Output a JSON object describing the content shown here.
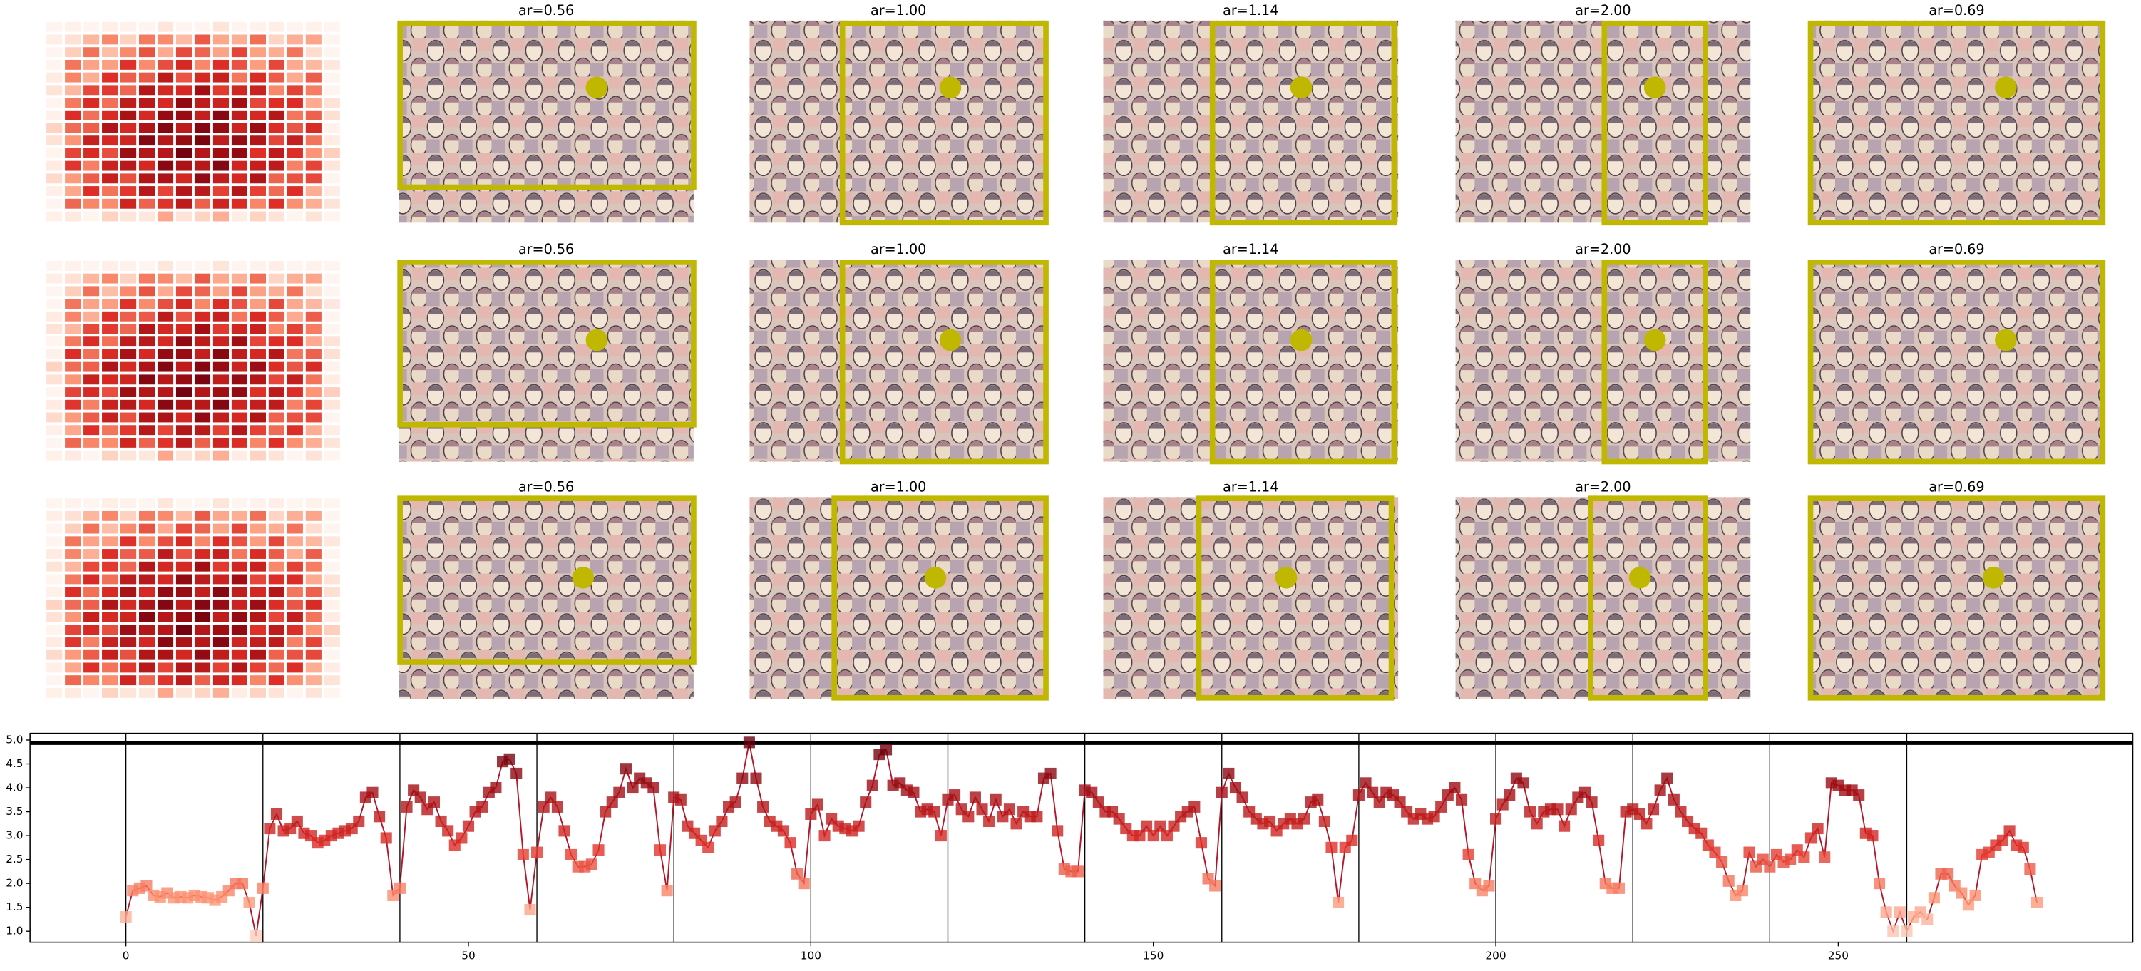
{
  "panel_titles": [
    [
      "ar=0.56",
      "ar=1.00",
      "ar=1.14",
      "ar=2.00",
      "ar=0.69"
    ],
    [
      "ar=0.56",
      "ar=1.00",
      "ar=1.14",
      "ar=2.00",
      "ar=0.69"
    ],
    [
      "ar=0.56",
      "ar=1.00",
      "ar=1.14",
      "ar=2.00",
      "ar=0.69"
    ]
  ],
  "chart_data": {
    "type": "line",
    "x": [
      0,
      1,
      2,
      3,
      4,
      5,
      6,
      7,
      8,
      9,
      10,
      11,
      12,
      13,
      14,
      15,
      16,
      17,
      18,
      19,
      20,
      21,
      22,
      23,
      24,
      25,
      26,
      27,
      28,
      29,
      30,
      31,
      32,
      33,
      34,
      35,
      36,
      37,
      38,
      39,
      40,
      41,
      42,
      43,
      44,
      45,
      46,
      47,
      48,
      49,
      50,
      51,
      52,
      53,
      54,
      55,
      56,
      57,
      58,
      59,
      60,
      61,
      62,
      63,
      64,
      65,
      66,
      67,
      68,
      69,
      70,
      71,
      72,
      73,
      74,
      75,
      76,
      77,
      78,
      79,
      80,
      81,
      82,
      83,
      84,
      85,
      86,
      87,
      88,
      89,
      90,
      91,
      92,
      93,
      94,
      95,
      96,
      97,
      98,
      99,
      100,
      101,
      102,
      103,
      104,
      105,
      106,
      107,
      108,
      109,
      110,
      111,
      112,
      113,
      114,
      115,
      116,
      117,
      118,
      119,
      120,
      121,
      122,
      123,
      124,
      125,
      126,
      127,
      128,
      129,
      130,
      131,
      132,
      133,
      134,
      135,
      136,
      137,
      138,
      139,
      140,
      141,
      142,
      143,
      144,
      145,
      146,
      147,
      148,
      149,
      150,
      151,
      152,
      153,
      154,
      155,
      156,
      157,
      158,
      159,
      160,
      161,
      162,
      163,
      164,
      165,
      166,
      167,
      168,
      169,
      170,
      171,
      172,
      173,
      174,
      175,
      176,
      177,
      178,
      179,
      180,
      181,
      182,
      183,
      184,
      185,
      186,
      187,
      188,
      189,
      190,
      191,
      192,
      193,
      194,
      195,
      196,
      197,
      198,
      199,
      200,
      201,
      202,
      203,
      204,
      205,
      206,
      207,
      208,
      209,
      210,
      211,
      212,
      213,
      214,
      215,
      216,
      217,
      218,
      219,
      220,
      221,
      222,
      223,
      224,
      225,
      226,
      227,
      228,
      229,
      230,
      231,
      232,
      233,
      234,
      235,
      236,
      237,
      238,
      239,
      240,
      241,
      242,
      243,
      244,
      245,
      246,
      247,
      248,
      249,
      250,
      251,
      252,
      253,
      254,
      255,
      256,
      257,
      258,
      259,
      260,
      261,
      262,
      263,
      264,
      265,
      266,
      267,
      268,
      269,
      270,
      271,
      272,
      273,
      274,
      275,
      276,
      277,
      278,
      279
    ],
    "series": [
      {
        "color": "#b2182b",
        "values": [
          1.3,
          1.85,
          1.9,
          1.95,
          1.75,
          1.72,
          1.8,
          1.7,
          1.72,
          1.7,
          1.75,
          1.72,
          1.7,
          1.65,
          1.72,
          1.85,
          2.0,
          2.0,
          1.6,
          0.9,
          1.9,
          3.15,
          3.45,
          3.1,
          3.15,
          3.3,
          3.05,
          3.0,
          2.85,
          2.9,
          3.0,
          3.05,
          3.1,
          3.15,
          3.3,
          3.8,
          3.9,
          3.4,
          2.95,
          1.75,
          1.9,
          3.6,
          3.95,
          3.8,
          3.55,
          3.7,
          3.3,
          3.1,
          2.8,
          2.95,
          3.2,
          3.5,
          3.6,
          3.9,
          4.0,
          4.55,
          4.6,
          4.3,
          2.6,
          1.45,
          2.65,
          3.6,
          3.8,
          3.6,
          3.1,
          2.6,
          2.35,
          2.35,
          2.4,
          2.7,
          3.5,
          3.7,
          3.9,
          4.4,
          4.0,
          4.2,
          4.1,
          4.0,
          2.7,
          1.85,
          3.8,
          3.75,
          3.2,
          3.05,
          2.9,
          2.75,
          3.1,
          3.3,
          3.6,
          3.7,
          4.2,
          4.95,
          4.2,
          3.6,
          3.3,
          3.2,
          3.1,
          2.85,
          2.2,
          2.0,
          3.45,
          3.65,
          3.0,
          3.35,
          3.2,
          3.15,
          3.1,
          3.2,
          3.7,
          4.05,
          4.7,
          4.8,
          4.05,
          4.1,
          3.95,
          3.9,
          3.5,
          3.55,
          3.5,
          3.0,
          3.75,
          3.85,
          3.55,
          3.4,
          3.8,
          3.55,
          3.3,
          3.75,
          3.4,
          3.55,
          3.25,
          3.5,
          3.4,
          3.4,
          4.2,
          4.3,
          3.1,
          2.3,
          2.25,
          2.25,
          3.95,
          3.9,
          3.7,
          3.5,
          3.5,
          3.35,
          3.15,
          3.0,
          3.0,
          3.2,
          3.0,
          3.2,
          3.0,
          3.2,
          3.4,
          3.5,
          3.6,
          2.85,
          2.1,
          1.95,
          3.9,
          4.3,
          4.0,
          3.8,
          3.5,
          3.35,
          3.25,
          3.3,
          3.1,
          3.25,
          3.35,
          3.25,
          3.35,
          3.7,
          3.75,
          3.3,
          2.75,
          1.6,
          2.75,
          2.9,
          3.85,
          4.1,
          3.9,
          3.7,
          3.9,
          3.85,
          3.7,
          3.5,
          3.35,
          3.45,
          3.35,
          3.4,
          3.6,
          3.85,
          4.0,
          3.75,
          2.6,
          2.0,
          1.85,
          1.95,
          3.35,
          3.65,
          3.85,
          4.2,
          4.1,
          3.5,
          3.25,
          3.5,
          3.55,
          3.55,
          3.2,
          3.55,
          3.8,
          3.9,
          3.7,
          2.9,
          2.0,
          1.9,
          1.9,
          3.5,
          3.55,
          3.45,
          3.25,
          3.55,
          3.95,
          4.2,
          3.75,
          3.5,
          3.3,
          3.15,
          3.05,
          2.8,
          2.65,
          2.45,
          2.05,
          1.75,
          1.85,
          2.65,
          2.35,
          2.5,
          2.35,
          2.6,
          2.45,
          2.5,
          2.7,
          2.55,
          2.95,
          3.15,
          2.55,
          4.1,
          4.05,
          3.95,
          3.95,
          3.85,
          3.05,
          3.0,
          2.0,
          1.4,
          1.0,
          1.4,
          1.0,
          1.3,
          1.4,
          1.25,
          1.7,
          2.2,
          2.2,
          1.95,
          1.8,
          1.55,
          1.75,
          2.6,
          2.65,
          2.8,
          2.9,
          3.1,
          2.8,
          2.75,
          2.3,
          1.6
        ]
      }
    ],
    "marker_colormap": "Reds",
    "xlim": [
      -14,
      293
    ],
    "ylim": [
      0.77,
      5.14
    ],
    "xticks": [
      0,
      50,
      100,
      150,
      200,
      250
    ],
    "yticks": [
      {
        "value": 1,
        "label": "1.0"
      },
      {
        "value": 1.5,
        "label": "1.5"
      },
      {
        "value": 2,
        "label": "2.0"
      },
      {
        "value": 2.5,
        "label": "2.5"
      },
      {
        "value": 3,
        "label": "3.0"
      },
      {
        "value": 3.5,
        "label": "3.5"
      },
      {
        "value": 4,
        "label": "4.0"
      },
      {
        "value": 4.5,
        "label": "4.5"
      },
      {
        "value": 5,
        "label": "5.0"
      }
    ],
    "vlines": [
      0,
      20,
      40,
      60,
      80,
      100,
      120,
      140,
      160,
      180,
      200,
      220,
      240,
      260
    ],
    "hline": 4.94
  }
}
